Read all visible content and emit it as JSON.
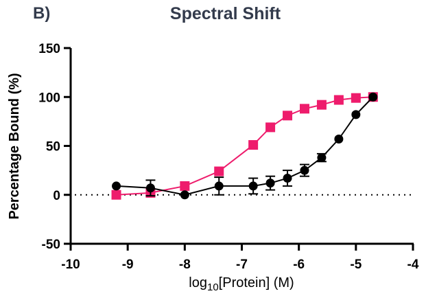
{
  "panel_label": "B)",
  "chart_data": {
    "type": "line",
    "title": "Spectral Shift",
    "xlabel_prefix": "log",
    "xlabel_sub": "10",
    "xlabel_suffix": "[Protein] (M)",
    "xlabel": "log10[Protein] (M)",
    "ylabel": "Percentage Bound (%)",
    "xlim": [
      -10,
      -4
    ],
    "ylim": [
      -50,
      150
    ],
    "xticks": [
      "-10",
      "-9",
      "-8",
      "-7",
      "-6",
      "-5",
      "-4"
    ],
    "yticks": [
      "150",
      "100",
      "50",
      "0",
      "-50"
    ],
    "reference_line": 0,
    "series": [
      {
        "name": "pink-squares",
        "color": "#ee1c6c",
        "marker": "square",
        "x": [
          -9.2,
          -8.6,
          -8.0,
          -7.4,
          -6.8,
          -6.5,
          -6.2,
          -5.9,
          -5.6,
          -5.3,
          -5.0,
          -4.7
        ],
        "y": [
          0,
          2,
          9,
          24,
          51,
          69,
          81,
          88,
          92,
          97,
          99,
          100
        ],
        "err": [
          0,
          0,
          0,
          0,
          0,
          0,
          0,
          0,
          0,
          0,
          0,
          0
        ]
      },
      {
        "name": "black-circles",
        "color": "#000000",
        "marker": "circle",
        "x": [
          -9.2,
          -8.6,
          -8.0,
          -7.4,
          -6.8,
          -6.5,
          -6.2,
          -5.9,
          -5.6,
          -5.3,
          -5.0,
          -4.7
        ],
        "y": [
          9,
          7,
          0,
          9,
          9,
          12,
          17,
          25,
          38,
          57,
          82,
          100
        ],
        "err": [
          0,
          8,
          0,
          9,
          8,
          7,
          8,
          6,
          4,
          0,
          0,
          0
        ]
      }
    ]
  }
}
